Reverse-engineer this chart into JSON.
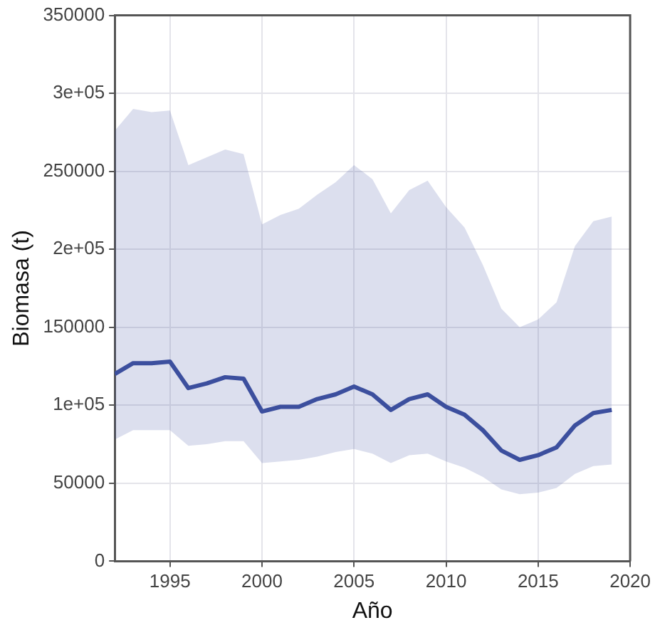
{
  "chart_data": {
    "type": "line",
    "xlabel": "Año",
    "ylabel": "Biomasa (t)",
    "x": [
      1992,
      1993,
      1994,
      1995,
      1996,
      1997,
      1998,
      1999,
      2000,
      2001,
      2002,
      2003,
      2004,
      2005,
      2006,
      2007,
      2008,
      2009,
      2010,
      2011,
      2012,
      2013,
      2014,
      2015,
      2016,
      2017,
      2018,
      2019
    ],
    "series": [
      {
        "color": "#3c4f9e",
        "values": [
          120000,
          127000,
          127000,
          128000,
          111000,
          114000,
          118000,
          117000,
          96000,
          99000,
          99000,
          104000,
          107000,
          112000,
          107000,
          97000,
          104000,
          107000,
          99000,
          94000,
          84000,
          71000,
          65000,
          68000,
          73000,
          87000,
          95000,
          97000
        ],
        "lower": [
          78000,
          84000,
          84000,
          84000,
          74000,
          75000,
          77000,
          77000,
          63000,
          64000,
          65000,
          67000,
          70000,
          72000,
          69000,
          63000,
          68000,
          69000,
          64000,
          60000,
          54000,
          46000,
          43000,
          44000,
          47000,
          56000,
          61000,
          62000
        ],
        "upper": [
          276000,
          290000,
          288000,
          289000,
          254000,
          259000,
          264000,
          261000,
          216000,
          222000,
          226000,
          235000,
          243000,
          254000,
          245000,
          223000,
          238000,
          244000,
          227000,
          214000,
          190000,
          162000,
          150000,
          155000,
          166000,
          202000,
          218000,
          221000
        ]
      }
    ],
    "xlim": [
      1992,
      2020
    ],
    "xticks": [
      1995,
      2000,
      2005,
      2010,
      2015,
      2020
    ],
    "ylim": [
      0,
      350000
    ],
    "yticks": [
      0,
      50000,
      {
        "value": 100000,
        "label": "1e+05"
      },
      150000,
      {
        "value": 200000,
        "label": "2e+05"
      },
      250000,
      {
        "value": 300000,
        "label": "3e+05"
      },
      350000
    ],
    "grid": true,
    "legend": false,
    "marker": "none",
    "line_style": "solid"
  }
}
